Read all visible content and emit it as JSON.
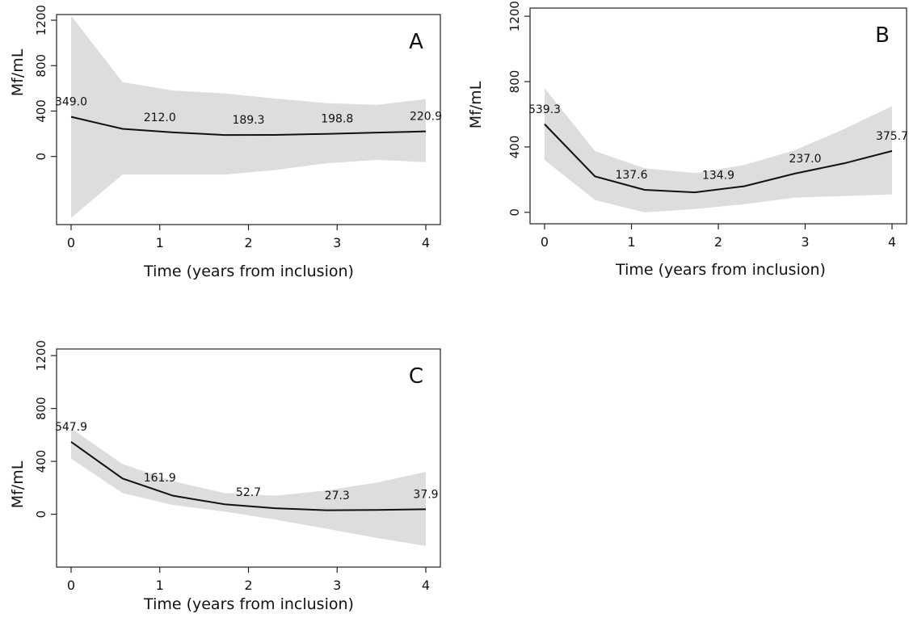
{
  "chart_data": [
    {
      "type": "area",
      "panel_label": "A",
      "xlabel": "Time (years from inclusion)",
      "ylabel": "Mf/mL",
      "xlim": [
        0,
        4
      ],
      "ylim": [
        -600,
        1250
      ],
      "xticks": [
        "0",
        "1",
        "2",
        "3",
        "4"
      ],
      "yticks": [
        "0",
        "400",
        "800",
        "1200"
      ],
      "grid": false,
      "series": [
        {
          "x": [
            0,
            0.58,
            1.15,
            1.73,
            2.3,
            2.88,
            3.45,
            4.0
          ],
          "mean": [
            349.0,
            243,
            212.0,
            189.3,
            190,
            198.8,
            210,
            220.9
          ],
          "upper": [
            1240,
            655,
            580,
            555,
            510,
            470,
            455,
            505
          ],
          "lower": [
            -540,
            -160,
            -160,
            -160,
            -120,
            -60,
            -30,
            -50
          ]
        }
      ],
      "data_labels": [
        {
          "x": 0,
          "y": 349.0,
          "text": "349.0"
        },
        {
          "x": 1,
          "y": 212.0,
          "text": "212.0"
        },
        {
          "x": 2,
          "y": 189.3,
          "text": "189.3"
        },
        {
          "x": 3,
          "y": 198.8,
          "text": "198.8"
        },
        {
          "x": 4,
          "y": 220.9,
          "text": "220.9"
        }
      ]
    },
    {
      "type": "area",
      "panel_label": "B",
      "xlabel": "Time (years from inclusion)",
      "ylabel": "Mf/mL",
      "xlim": [
        0,
        4
      ],
      "ylim": [
        -70,
        1250
      ],
      "xticks": [
        "0",
        "1",
        "2",
        "3",
        "4"
      ],
      "yticks": [
        "0",
        "400",
        "800",
        "1200"
      ],
      "grid": false,
      "series": [
        {
          "x": [
            0,
            0.58,
            1.15,
            1.73,
            2.3,
            2.88,
            3.45,
            4.0
          ],
          "mean": [
            539.3,
            220,
            137.6,
            122,
            160,
            237.0,
            300,
            375.7
          ],
          "upper": [
            760,
            375,
            270,
            240,
            290,
            380,
            510,
            650
          ],
          "lower": [
            320,
            75,
            0,
            20,
            50,
            90,
            100,
            110
          ]
        }
      ],
      "data_labels": [
        {
          "x": 0,
          "y": 539.3,
          "text": "539.3"
        },
        {
          "x": 1,
          "y": 137.6,
          "text": "137.6"
        },
        {
          "x": 2,
          "y": 134.9,
          "text": "134.9"
        },
        {
          "x": 3,
          "y": 237.0,
          "text": "237.0"
        },
        {
          "x": 4,
          "y": 375.7,
          "text": "375.7"
        }
      ]
    },
    {
      "type": "area",
      "panel_label": "C",
      "xlabel": "Time (years from inclusion)",
      "ylabel": "Mf/mL",
      "xlim": [
        0,
        4
      ],
      "ylim": [
        -400,
        1250
      ],
      "xticks": [
        "0",
        "1",
        "2",
        "3",
        "4"
      ],
      "yticks": [
        "0",
        "400",
        "800",
        "1200"
      ],
      "grid": false,
      "series": [
        {
          "x": [
            0,
            0.58,
            1.15,
            1.73,
            2.3,
            2.88,
            3.45,
            4.0
          ],
          "mean": [
            547.9,
            270,
            140,
            75,
            45,
            30,
            32,
            37.9
          ],
          "upper": [
            650,
            380,
            250,
            160,
            140,
            180,
            240,
            320
          ],
          "lower": [
            420,
            160,
            70,
            20,
            -40,
            -110,
            -180,
            -240
          ]
        }
      ],
      "data_labels": [
        {
          "x": 0,
          "y": 547.9,
          "text": "547.9"
        },
        {
          "x": 1,
          "y": 161.9,
          "text": "161.9"
        },
        {
          "x": 2,
          "y": 52.7,
          "text": "52.7"
        },
        {
          "x": 3,
          "y": 27.3,
          "text": "27.3"
        },
        {
          "x": 4,
          "y": 37.9,
          "text": "37.9"
        }
      ]
    }
  ],
  "colors": {
    "band": "#dddddd",
    "line": "#111111",
    "frame": "#222222"
  }
}
